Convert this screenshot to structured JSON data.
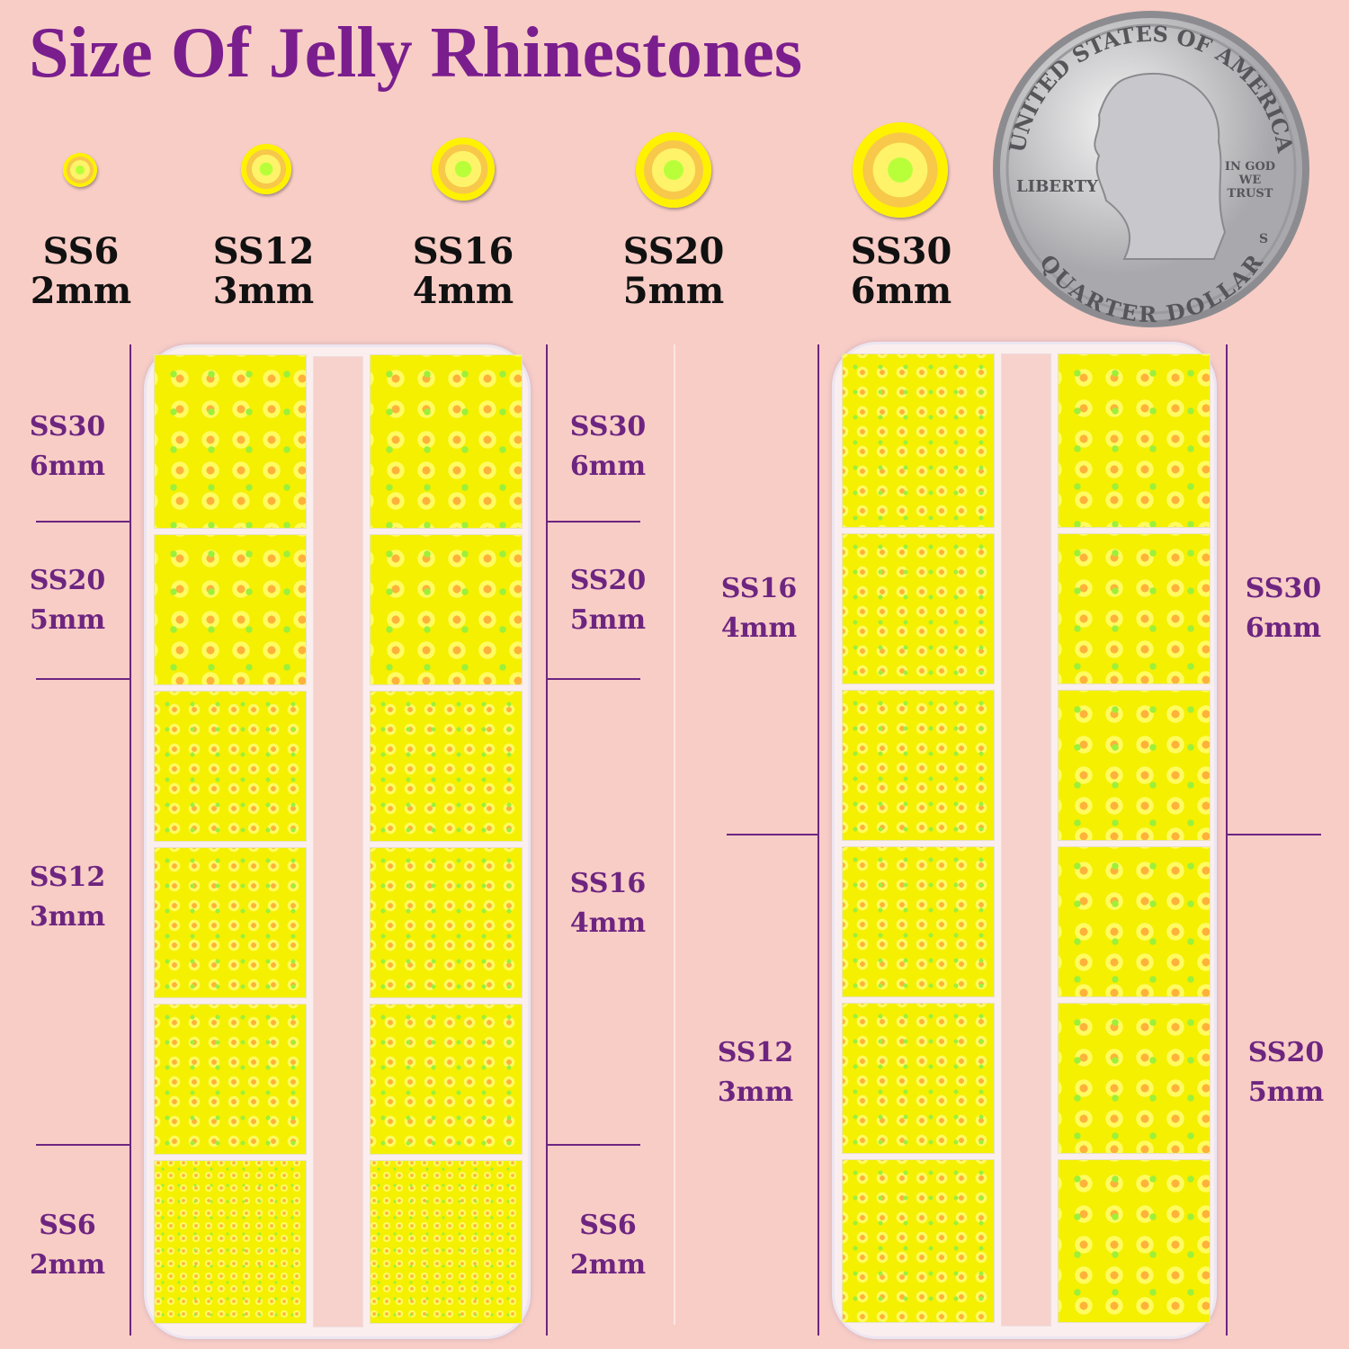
{
  "title": "Size Of Jelly Rhinestones",
  "sizes": [
    {
      "ss": "SS6",
      "mm": "2mm"
    },
    {
      "ss": "SS12",
      "mm": "3mm"
    },
    {
      "ss": "SS16",
      "mm": "4mm"
    },
    {
      "ss": "SS20",
      "mm": "5mm"
    },
    {
      "ss": "SS30",
      "mm": "6mm"
    }
  ],
  "coin": {
    "top": "UNITED STATES OF AMERICA",
    "motto": "IN GOD WE TRUST",
    "liberty": "LIBERTY",
    "mint": "S",
    "bottom": "QUARTER DOLLAR"
  },
  "left_box": {
    "left_labels": [
      {
        "ss": "SS30",
        "mm": "6mm"
      },
      {
        "ss": "SS20",
        "mm": "5mm"
      },
      {
        "ss": "SS12",
        "mm": "3mm"
      },
      {
        "ss": "SS6",
        "mm": "2mm"
      }
    ],
    "right_labels": [
      {
        "ss": "SS30",
        "mm": "6mm"
      },
      {
        "ss": "SS20",
        "mm": "5mm"
      },
      {
        "ss": "SS16",
        "mm": "4mm"
      },
      {
        "ss": "SS6",
        "mm": "2mm"
      }
    ]
  },
  "right_box": {
    "left_labels": [
      {
        "ss": "SS16",
        "mm": "4mm"
      },
      {
        "ss": "SS12",
        "mm": "3mm"
      }
    ],
    "right_labels": [
      {
        "ss": "SS30",
        "mm": "6mm"
      },
      {
        "ss": "SS20",
        "mm": "5mm"
      }
    ]
  },
  "colors": {
    "title": "#7a1e8e",
    "label": "#6d2580",
    "background": "#f8cdc6",
    "rhinestone": "#f4f000"
  }
}
